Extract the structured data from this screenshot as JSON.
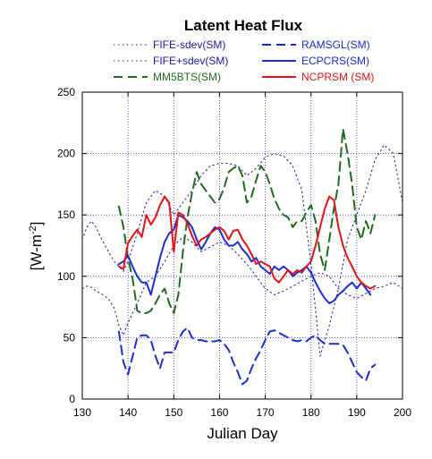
{
  "chart_data": {
    "type": "line",
    "title": "Latent Heat Flux",
    "xlabel": "Julian Day",
    "ylabel_base": "[W-m",
    "ylabel_exp": "-2",
    "ylabel_close": "]",
    "xlim": [
      130,
      200
    ],
    "ylim": [
      0,
      250
    ],
    "xticks": [
      130,
      140,
      150,
      160,
      170,
      180,
      190,
      200
    ],
    "yticks": [
      0,
      50,
      100,
      150,
      200,
      250
    ],
    "grid": true,
    "legend_position": "top",
    "series": [
      {
        "name": "FIFE-sdev(SM)",
        "color": "#1a1aa0",
        "dash": "1.5,3.5",
        "width": 1,
        "x": [
          130,
          131,
          132,
          133,
          134,
          135,
          136,
          137,
          138,
          139,
          140,
          142,
          144,
          146,
          148,
          150,
          152,
          154,
          156,
          158,
          160,
          162,
          164,
          166,
          168,
          170,
          172,
          174,
          176,
          178,
          180,
          182,
          184,
          186,
          188,
          190,
          192,
          194,
          196,
          198,
          200
        ],
        "y": [
          90,
          92,
          91,
          88,
          86,
          84,
          80,
          74,
          60,
          52,
          62,
          78,
          95,
          100,
          112,
          125,
          132,
          128,
          120,
          124,
          128,
          125,
          118,
          110,
          100,
          90,
          85,
          88,
          92,
          96,
          100,
          103,
          100,
          90,
          85,
          82,
          86,
          90,
          92,
          95,
          90
        ]
      },
      {
        "name": "FIFE+sdev(SM)",
        "color": "#1a1aa0",
        "dash": "1.5,3.5",
        "width": 1,
        "x": [
          130,
          131,
          132,
          133,
          134,
          135,
          136,
          137,
          138,
          139,
          140,
          142,
          144,
          146,
          148,
          150,
          152,
          154,
          156,
          158,
          160,
          162,
          164,
          166,
          168,
          170,
          172,
          174,
          176,
          178,
          180,
          182,
          184,
          186,
          188,
          190,
          192,
          194,
          196,
          198,
          200
        ],
        "y": [
          130,
          140,
          145,
          140,
          132,
          125,
          118,
          112,
          108,
          104,
          112,
          135,
          160,
          170,
          165,
          150,
          160,
          170,
          182,
          190,
          192,
          192,
          190,
          182,
          188,
          197,
          200,
          198,
          190,
          170,
          110,
          35,
          60,
          90,
          130,
          150,
          170,
          195,
          207,
          200,
          160
        ]
      },
      {
        "name": "MM5BTS(SM)",
        "color": "#1e6b1e",
        "dash": "10,6",
        "width": 2,
        "x": [
          138,
          139,
          140,
          141,
          142,
          143,
          144,
          145,
          146,
          147,
          148,
          149,
          150,
          151,
          152,
          153,
          154,
          155,
          156,
          157,
          158,
          159,
          160,
          161,
          162,
          163,
          164,
          165,
          166,
          167,
          168,
          169,
          170,
          171,
          172,
          173,
          174,
          175,
          176,
          177,
          178,
          179,
          180,
          181,
          182,
          183,
          184,
          185,
          186,
          187,
          188,
          189,
          190,
          191,
          192,
          193,
          194
        ],
        "y": [
          157,
          140,
          115,
          98,
          72,
          70,
          70,
          72,
          78,
          85,
          90,
          78,
          70,
          85,
          120,
          148,
          168,
          185,
          175,
          170,
          165,
          160,
          163,
          172,
          185,
          188,
          190,
          182,
          160,
          165,
          178,
          190,
          185,
          175,
          163,
          155,
          150,
          148,
          140,
          145,
          145,
          152,
          158,
          145,
          118,
          105,
          130,
          155,
          175,
          220,
          200,
          175,
          140,
          130,
          145,
          135,
          150
        ]
      },
      {
        "name": "RAMSGL(SM)",
        "color": "#1a2fd0",
        "dash": "10,6",
        "width": 2,
        "x": [
          138,
          139,
          140,
          141,
          142,
          143,
          144,
          145,
          146,
          147,
          148,
          149,
          150,
          151,
          152,
          153,
          154,
          155,
          156,
          157,
          158,
          159,
          160,
          161,
          162,
          163,
          164,
          165,
          166,
          167,
          168,
          169,
          170,
          171,
          172,
          173,
          174,
          175,
          176,
          177,
          178,
          179,
          180,
          181,
          182,
          183,
          184,
          185,
          186,
          187,
          188,
          189,
          190,
          191,
          192,
          193,
          194
        ],
        "y": [
          55,
          30,
          20,
          35,
          50,
          52,
          52,
          48,
          35,
          25,
          38,
          38,
          38,
          48,
          55,
          58,
          50,
          48,
          48,
          47,
          47,
          47,
          48,
          45,
          40,
          30,
          22,
          12,
          15,
          25,
          33,
          40,
          48,
          55,
          56,
          54,
          52,
          50,
          48,
          47,
          48,
          47,
          50,
          52,
          48,
          45,
          45,
          45,
          45,
          44,
          38,
          30,
          22,
          18,
          15,
          25,
          28
        ]
      },
      {
        "name": "ECPCRS(SM)",
        "color": "#1a2fd0",
        "dash": "",
        "width": 2,
        "x": [
          138,
          139,
          140,
          141,
          142,
          143,
          144,
          145,
          146,
          147,
          148,
          149,
          150,
          151,
          152,
          153,
          154,
          155,
          156,
          157,
          158,
          159,
          160,
          161,
          162,
          163,
          164,
          165,
          166,
          167,
          168,
          169,
          170,
          171,
          172,
          173,
          174,
          175,
          176,
          177,
          178,
          179,
          180,
          181,
          182,
          183,
          184,
          185,
          186,
          187,
          188,
          189,
          190,
          191,
          192,
          193
        ],
        "y": [
          110,
          112,
          117,
          108,
          100,
          95,
          95,
          85,
          100,
          115,
          128,
          135,
          138,
          150,
          148,
          145,
          140,
          130,
          122,
          128,
          135,
          140,
          138,
          130,
          125,
          125,
          128,
          122,
          118,
          112,
          115,
          108,
          105,
          102,
          108,
          105,
          108,
          105,
          100,
          103,
          105,
          108,
          103,
          95,
          88,
          82,
          78,
          80,
          85,
          88,
          92,
          95,
          90,
          95,
          90,
          85
        ]
      },
      {
        "name": "NCPRSM (SM)",
        "color": "#e01515",
        "dash": "",
        "width": 2,
        "x": [
          138,
          139,
          140,
          141,
          142,
          143,
          144,
          145,
          146,
          147,
          148,
          149,
          150,
          151,
          152,
          153,
          154,
          155,
          156,
          157,
          158,
          159,
          160,
          161,
          162,
          163,
          164,
          165,
          166,
          167,
          168,
          169,
          170,
          171,
          172,
          173,
          174,
          175,
          176,
          177,
          178,
          179,
          180,
          181,
          182,
          183,
          184,
          185,
          186,
          187,
          188,
          189,
          190,
          191,
          192,
          193,
          194
        ],
        "y": [
          108,
          106,
          127,
          133,
          138,
          132,
          150,
          142,
          148,
          158,
          165,
          160,
          120,
          152,
          150,
          143,
          133,
          125,
          130,
          132,
          135,
          138,
          140,
          137,
          130,
          137,
          138,
          130,
          125,
          118,
          110,
          112,
          110,
          108,
          98,
          95,
          100,
          105,
          102,
          105,
          103,
          108,
          112,
          125,
          140,
          155,
          165,
          162,
          140,
          125,
          115,
          108,
          100,
          95,
          92,
          90,
          92
        ]
      }
    ]
  }
}
